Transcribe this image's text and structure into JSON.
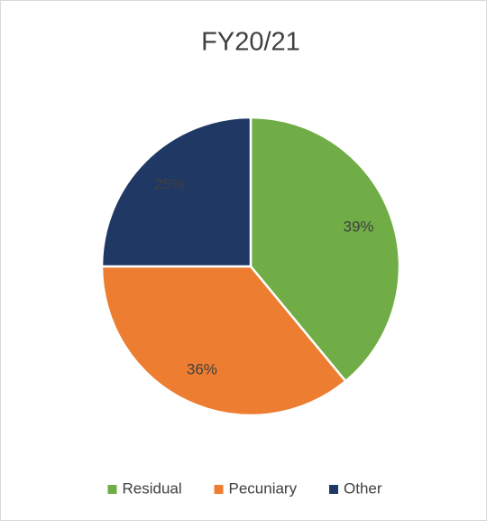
{
  "chart_data": {
    "type": "pie",
    "title": "FY20/21",
    "categories": [
      "Residual",
      "Pecuniary",
      "Other"
    ],
    "values": [
      39,
      36,
      25
    ],
    "value_labels": [
      "39%",
      "36%",
      "25%"
    ],
    "colors": [
      "#70ad47",
      "#ed7d31",
      "#203864"
    ],
    "legend": "bottom"
  }
}
